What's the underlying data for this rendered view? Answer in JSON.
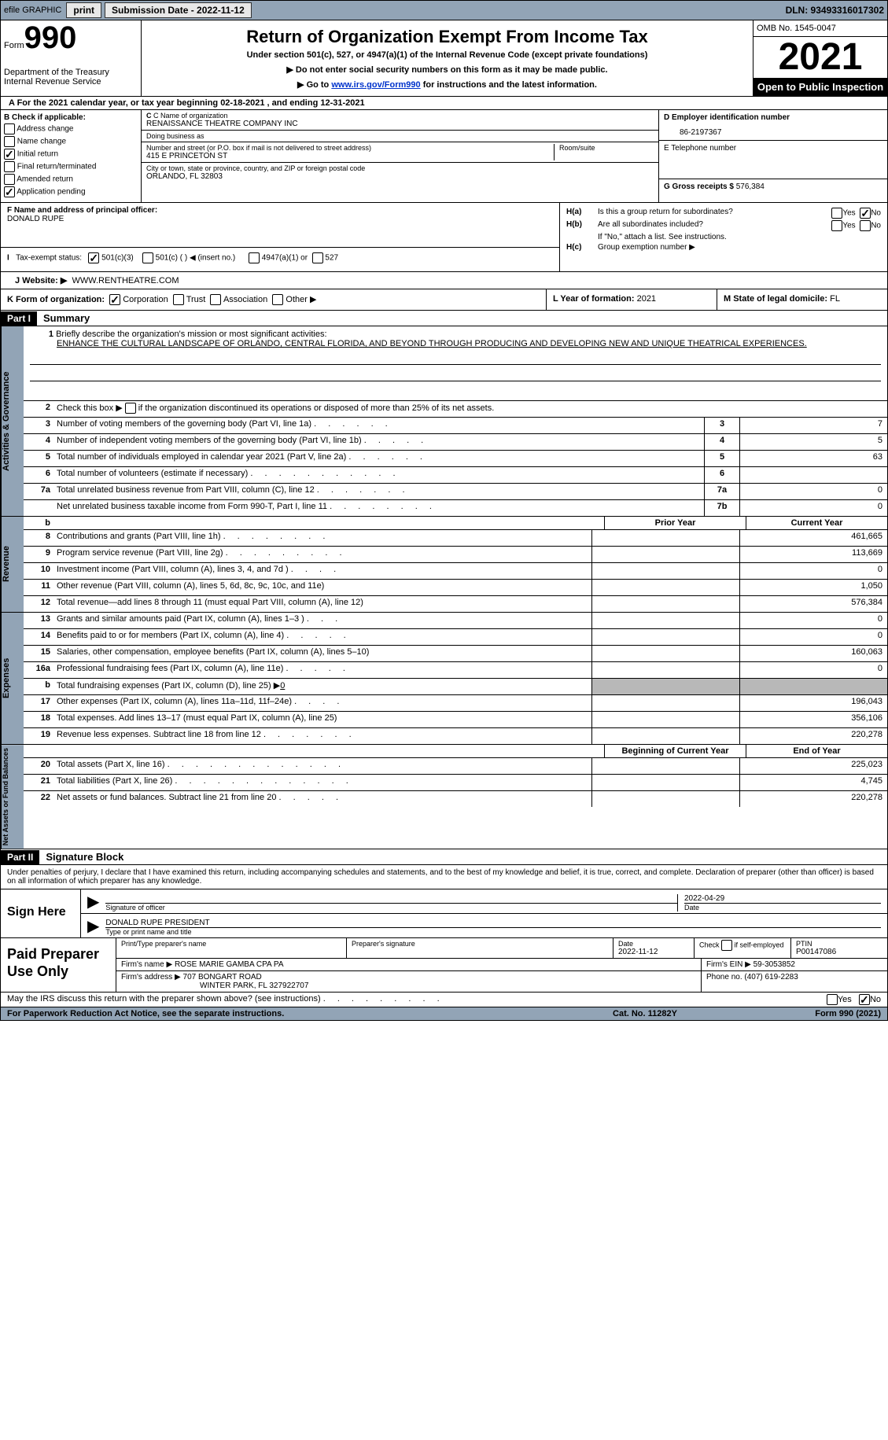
{
  "topbar": {
    "efile": "efile GRAPHIC",
    "print": "print",
    "submission": "Submission Date - 2022-11-12",
    "dln": "DLN: 93493316017302"
  },
  "header": {
    "form_label": "Form",
    "form_number": "990",
    "title": "Return of Organization Exempt From Income Tax",
    "subtitle": "Under section 501(c), 527, or 4947(a)(1) of the Internal Revenue Code (except private foundations)",
    "instr1": "▶ Do not enter social security numbers on this form as it may be made public.",
    "instr2_pre": "▶ Go to ",
    "instr2_link": "www.irs.gov/Form990",
    "instr2_post": " for instructions and the latest information.",
    "dept": "Department of the Treasury",
    "irs": "Internal Revenue Service",
    "omb": "OMB No. 1545-0047",
    "year": "2021",
    "inspection": "Open to Public Inspection"
  },
  "line_a": "A For the 2021 calendar year, or tax year beginning 02-18-2021    , and ending 12-31-2021",
  "section_b": {
    "title": "B Check if applicable:",
    "items": [
      "Address change",
      "Name change",
      "Initial return",
      "Final return/terminated",
      "Amended return",
      "Application pending"
    ],
    "checked": [
      false,
      false,
      true,
      false,
      false,
      true
    ]
  },
  "section_c": {
    "name_label": "C Name of organization",
    "name": "RENAISSANCE THEATRE COMPANY INC",
    "dba_label": "Doing business as",
    "dba": "",
    "addr_label": "Number and street (or P.O. box if mail is not delivered to street address)",
    "addr": "415 E PRINCETON ST",
    "room_label": "Room/suite",
    "city_label": "City or town, state or province, country, and ZIP or foreign postal code",
    "city": "ORLANDO, FL  32803"
  },
  "section_d": {
    "ein_label": "D Employer identification number",
    "ein": "86-2197367",
    "phone_label": "E Telephone number",
    "phone": "",
    "gross_label": "G Gross receipts $",
    "gross": "576,384"
  },
  "section_f": {
    "label": "F  Name and address of principal officer:",
    "name": "DONALD RUPE"
  },
  "section_h": {
    "ha": "Is this a group return for subordinates?",
    "ha_yes": "Yes",
    "ha_no": "No",
    "hb": "Are all subordinates included?",
    "hb_note": "If \"No,\" attach a list. See instructions.",
    "hc": "Group exemption number ▶"
  },
  "section_i": {
    "label": "Tax-exempt status:",
    "opt1": "501(c)(3)",
    "opt2": "501(c) (   ) ◀ (insert no.)",
    "opt3": "4947(a)(1) or",
    "opt4": "527"
  },
  "section_j": {
    "label": "J    Website: ▶",
    "val": "WWW.RENTHEATRE.COM"
  },
  "section_k": {
    "label": "K Form of organization:",
    "opts": [
      "Corporation",
      "Trust",
      "Association",
      "Other ▶"
    ]
  },
  "section_l": {
    "label": "L Year of formation:",
    "val": "2021"
  },
  "section_m": {
    "label": "M State of legal domicile:",
    "val": "FL"
  },
  "parts": {
    "part1": "Part I",
    "summary": "Summary",
    "part2": "Part II",
    "sig": "Signature Block"
  },
  "mission": {
    "label": "Briefly describe the organization's mission or most significant activities:",
    "text": "ENHANCE THE CULTURAL LANDSCAPE OF ORLANDO, CENTRAL FLORIDA, AND BEYOND THROUGH PRODUCING AND DEVELOPING NEW AND UNIQUE THEATRICAL EXPERIENCES."
  },
  "summary_rows": {
    "r2": "Check this box ▶      if the organization discontinued its operations or disposed of more than 25% of its net assets.",
    "r3": {
      "label": "Number of voting members of the governing body (Part VI, line 1a)",
      "box": "3",
      "val": "7"
    },
    "r4": {
      "label": "Number of independent voting members of the governing body (Part VI, line 1b)",
      "box": "4",
      "val": "5"
    },
    "r5": {
      "label": "Total number of individuals employed in calendar year 2021 (Part V, line 2a)",
      "box": "5",
      "val": "63"
    },
    "r6": {
      "label": "Total number of volunteers (estimate if necessary)",
      "box": "6",
      "val": ""
    },
    "r7a": {
      "label": "Total unrelated business revenue from Part VIII, column (C), line 12",
      "box": "7a",
      "val": "0"
    },
    "r7b": {
      "label": "Net unrelated business taxable income from Form 990-T, Part I, line 11",
      "box": "7b",
      "val": "0"
    }
  },
  "col_headers": {
    "prior": "Prior Year",
    "current": "Current Year",
    "begin": "Beginning of Current Year",
    "end": "End of Year"
  },
  "revenue": {
    "r8": {
      "label": "Contributions and grants (Part VIII, line 1h)",
      "prior": "",
      "curr": "461,665"
    },
    "r9": {
      "label": "Program service revenue (Part VIII, line 2g)",
      "prior": "",
      "curr": "113,669"
    },
    "r10": {
      "label": "Investment income (Part VIII, column (A), lines 3, 4, and 7d )",
      "prior": "",
      "curr": "0"
    },
    "r11": {
      "label": "Other revenue (Part VIII, column (A), lines 5, 6d, 8c, 9c, 10c, and 11e)",
      "prior": "",
      "curr": "1,050"
    },
    "r12": {
      "label": "Total revenue—add lines 8 through 11 (must equal Part VIII, column (A), line 12)",
      "prior": "",
      "curr": "576,384"
    }
  },
  "expenses": {
    "r13": {
      "label": "Grants and similar amounts paid (Part IX, column (A), lines 1–3 )",
      "prior": "",
      "curr": "0"
    },
    "r14": {
      "label": "Benefits paid to or for members (Part IX, column (A), line 4)",
      "prior": "",
      "curr": "0"
    },
    "r15": {
      "label": "Salaries, other compensation, employee benefits (Part IX, column (A), lines 5–10)",
      "prior": "",
      "curr": "160,063"
    },
    "r16a": {
      "label": "Professional fundraising fees (Part IX, column (A), line 11e)",
      "prior": "",
      "curr": "0"
    },
    "r16b": {
      "label": "Total fundraising expenses (Part IX, column (D), line 25) ▶",
      "val": "0"
    },
    "r17": {
      "label": "Other expenses (Part IX, column (A), lines 11a–11d, 11f–24e)",
      "prior": "",
      "curr": "196,043"
    },
    "r18": {
      "label": "Total expenses. Add lines 13–17 (must equal Part IX, column (A), line 25)",
      "prior": "",
      "curr": "356,106"
    },
    "r19": {
      "label": "Revenue less expenses. Subtract line 18 from line 12",
      "prior": "",
      "curr": "220,278"
    }
  },
  "netassets": {
    "r20": {
      "label": "Total assets (Part X, line 16)",
      "prior": "",
      "curr": "225,023"
    },
    "r21": {
      "label": "Total liabilities (Part X, line 26)",
      "prior": "",
      "curr": "4,745"
    },
    "r22": {
      "label": "Net assets or fund balances. Subtract line 21 from line 20",
      "prior": "",
      "curr": "220,278"
    }
  },
  "vtabs": {
    "gov": "Activities & Governance",
    "rev": "Revenue",
    "exp": "Expenses",
    "net": "Net Assets or Fund Balances"
  },
  "declare": "Under penalties of perjury, I declare that I have examined this return, including accompanying schedules and statements, and to the best of my knowledge and belief, it is true, correct, and complete. Declaration of preparer (other than officer) is based on all information of which preparer has any knowledge.",
  "sign": {
    "label": "Sign Here",
    "sig_label": "Signature of officer",
    "date_label": "Date",
    "date_val": "2022-04-29",
    "name_label": "Type or print name and title",
    "name_val": "DONALD RUPE  PRESIDENT"
  },
  "prep": {
    "label": "Paid Preparer Use Only",
    "r1": {
      "c1_label": "Print/Type preparer's name",
      "c2_label": "Preparer's signature",
      "c3_label": "Date",
      "c3_val": "2022-11-12",
      "c4_label": "Check        if self-employed",
      "c5_label": "PTIN",
      "c5_val": "P00147086"
    },
    "r2": {
      "c1_label": "Firm's name      ▶",
      "c1_val": "ROSE MARIE GAMBA CPA PA",
      "c2_label": "Firm's EIN ▶",
      "c2_val": "59-3053852"
    },
    "r3": {
      "c1_label": "Firm's address ▶",
      "c1_val": "707 BONGART ROAD",
      "c1_val2": "WINTER PARK, FL  327922707",
      "c2_label": "Phone no.",
      "c2_val": "(407) 619-2283"
    }
  },
  "footer": {
    "discuss": "May the IRS discuss this return with the preparer shown above? (see instructions)",
    "yes": "Yes",
    "no": "No"
  },
  "bottom": {
    "left": "For Paperwork Reduction Act Notice, see the separate instructions.",
    "center": "Cat. No. 11282Y",
    "right": "Form 990 (2021)"
  }
}
